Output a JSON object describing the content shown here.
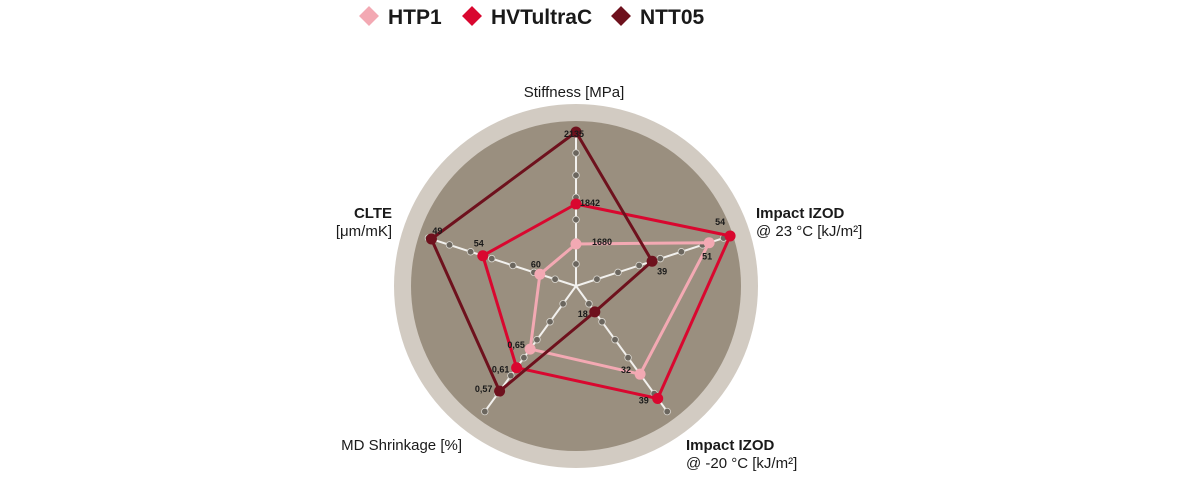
{
  "chart_data": {
    "type": "radar",
    "legend": [
      {
        "name": "HTP1",
        "color": "#f3a9b3"
      },
      {
        "name": "HVTultraC",
        "color": "#d9072f"
      },
      {
        "name": "NTT05",
        "color": "#6e111d"
      }
    ],
    "axes": [
      {
        "key": "stiffness",
        "lines": [
          "Stiffness [MPa]"
        ]
      },
      {
        "key": "izod23",
        "lines": [
          "Impact IZOD",
          "@ 23 °C [kJ/m²]"
        ]
      },
      {
        "key": "izod-20",
        "lines": [
          "Impact IZOD",
          "@ -20 °C [kJ/m²]"
        ]
      },
      {
        "key": "shrinkage",
        "lines": [
          "MD Shrinkage [%]"
        ]
      },
      {
        "key": "clte",
        "lines": [
          "CLTE",
          "[μm/mK]"
        ]
      }
    ],
    "series": [
      {
        "name": "HTP1",
        "color": "#f3a9b3",
        "values": [
          1680,
          51,
          32,
          0.65,
          60
        ],
        "labels": [
          "1680",
          "51",
          "32",
          "0,65",
          "60"
        ]
      },
      {
        "name": "HVTultraC",
        "color": "#d9072f",
        "values": [
          1842,
          54,
          39,
          0.61,
          54
        ],
        "labels": [
          "1842",
          "54",
          "39",
          "0,61",
          "54"
        ]
      },
      {
        "name": "NTT05",
        "color": "#6e111d",
        "values": [
          2135,
          39,
          18,
          0.57,
          49
        ],
        "labels": [
          "2135",
          "39",
          "18",
          "0,57",
          "49"
        ]
      }
    ],
    "grid_ticks_per_axis": 7,
    "colors": {
      "outer_ring": "#d2cbc2",
      "inner_disc": "#9a8f7f",
      "spoke": "#f2f1ee",
      "tick_dot": "#6b665e"
    }
  }
}
